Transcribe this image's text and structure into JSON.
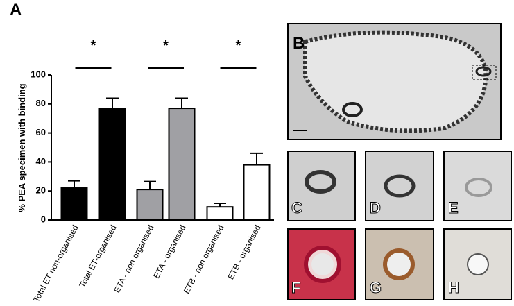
{
  "chart_data": {
    "type": "bar",
    "panel_label": "A",
    "y_label": "% PEA specimen with binding",
    "categories": [
      "Total ET non-organised",
      "Total ET-organised",
      "ETA - non organised",
      "ETA - organised",
      "ETB - non organised",
      "ETB - organised"
    ],
    "values": [
      22,
      77,
      21,
      77,
      9,
      38
    ],
    "errors": [
      5,
      7,
      5.5,
      7,
      2.5,
      8
    ],
    "colors": [
      "#000000",
      "#000000",
      "#a0a0a4",
      "#a0a0a4",
      "#ffffff",
      "#ffffff"
    ],
    "ylim": [
      0,
      100
    ],
    "yticks": [
      0,
      20,
      40,
      60,
      80,
      100
    ],
    "annotations": [
      "*",
      "*",
      "*"
    ],
    "image_panels": [
      "B",
      "C",
      "D",
      "E",
      "F",
      "G",
      "H"
    ]
  }
}
